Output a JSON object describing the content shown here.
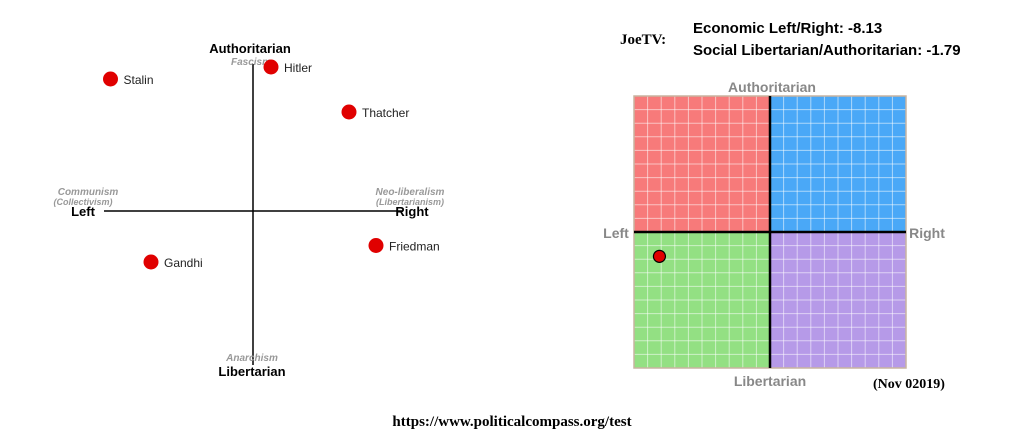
{
  "header": {
    "user": "JoeTV:",
    "economic_score": "Economic Left/Right: -8.13",
    "social_score": "Social Libertarian/Authoritarian: -1.79"
  },
  "footer": {
    "date": "(Nov 02019)",
    "url": "https://www.politicalcompass.org/test"
  },
  "colors": {
    "point": "#e00000",
    "auth_left": "#f77a7a",
    "auth_right": "#4aa8f7",
    "lib_left": "#93e083",
    "lib_right": "#b69ae8",
    "grid": "#c8b4a0"
  },
  "chart_data": [
    {
      "type": "scatter",
      "axes": {
        "top": "Authoritarian",
        "top_sub": "Fascism",
        "bottom": "Libertarian",
        "bottom_sub": "Anarchism",
        "left": "Left",
        "left_sub": "Communism",
        "left_sub2": "(Collectivism)",
        "right": "Right",
        "right_sub": "Neo-liberalism",
        "right_sub2": "(Libertarianism)"
      },
      "xlim": [
        -10,
        10
      ],
      "ylim": [
        -10,
        10
      ],
      "points": [
        {
          "label": "Stalin",
          "x": -9.5,
          "y": 8.8
        },
        {
          "label": "Hitler",
          "x": 1.2,
          "y": 9.6
        },
        {
          "label": "Thatcher",
          "x": 6.4,
          "y": 6.6
        },
        {
          "label": "Friedman",
          "x": 8.2,
          "y": -2.3
        },
        {
          "label": "Gandhi",
          "x": -6.8,
          "y": -3.4
        }
      ]
    },
    {
      "type": "scatter",
      "axes": {
        "top": "Authoritarian",
        "bottom": "Libertarian",
        "left": "Left",
        "right": "Right"
      },
      "xlim": [
        -10,
        10
      ],
      "ylim": [
        -10,
        10
      ],
      "grid": true,
      "points": [
        {
          "label": "",
          "x": -8.13,
          "y": -1.79
        }
      ]
    }
  ]
}
